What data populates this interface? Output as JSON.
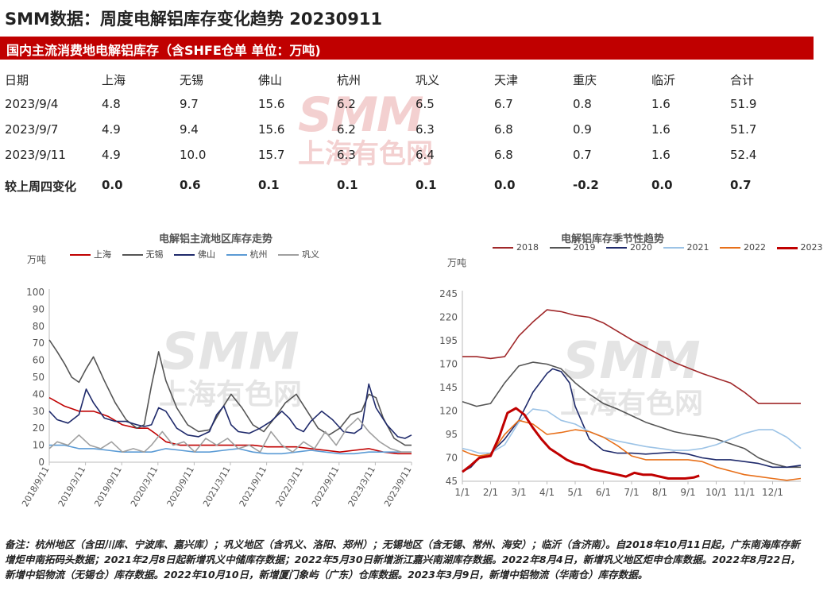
{
  "header": {
    "title": "SMM数据：周度电解铝库存变化趋势 20230911"
  },
  "banner": {
    "text": "国内主流消费地电解铝库存（含SHFE仓单 单位：万吨)"
  },
  "table": {
    "columns": [
      "日期",
      "上海",
      "无锡",
      "佛山",
      "杭州",
      "巩义",
      "天津",
      "重庆",
      "临沂",
      "合计"
    ],
    "rows": [
      [
        "2023/9/4",
        "4.8",
        "9.7",
        "15.6",
        "6.2",
        "6.5",
        "6.7",
        "0.8",
        "1.6",
        "51.9"
      ],
      [
        "2023/9/7",
        "4.9",
        "9.4",
        "15.6",
        "6.2",
        "6.3",
        "6.8",
        "0.9",
        "1.6",
        "51.7"
      ],
      [
        "2023/9/11",
        "4.9",
        "10.0",
        "15.7",
        "6.3",
        "6.4",
        "6.8",
        "0.7",
        "1.6",
        "52.4"
      ]
    ],
    "change_row": [
      "较上周四变化",
      "0.0",
      "0.6",
      "0.1",
      "0.1",
      "0.1",
      "0.0",
      "-0.2",
      "0.0",
      "0.7"
    ]
  },
  "watermark": {
    "brand": "SMM",
    "cn": "上海有色网",
    "color": "#c00000"
  },
  "chart_data": [
    {
      "type": "line",
      "title": "电解铝主流地区库存走势",
      "ylabel": "万吨",
      "ylim": [
        0,
        100
      ],
      "yticks": [
        0,
        10,
        20,
        30,
        40,
        50,
        60,
        70,
        80,
        90,
        100
      ],
      "x_range": [
        2018.69,
        2023.69
      ],
      "xtick_labels": [
        "2018/9/11",
        "2019/3/11",
        "2019/9/11",
        "2020/3/11",
        "2020/9/11",
        "2021/3/11",
        "2021/9/11",
        "2022/3/11",
        "2022/9/11",
        "2023/3/11",
        "2023/9/11"
      ],
      "xtick_positions": [
        2018.69,
        2019.19,
        2019.69,
        2020.19,
        2020.69,
        2021.19,
        2021.69,
        2022.19,
        2022.69,
        2023.19,
        2023.69
      ],
      "series": [
        {
          "name": "上海",
          "color": "#c00000",
          "x": [
            2018.69,
            2018.9,
            2019.1,
            2019.3,
            2019.5,
            2019.7,
            2019.9,
            2020.05,
            2020.15,
            2020.3,
            2020.5,
            2020.7,
            2020.9,
            2021.1,
            2021.3,
            2021.5,
            2021.7,
            2021.9,
            2022.1,
            2022.3,
            2022.5,
            2022.7,
            2022.9,
            2023.1,
            2023.3,
            2023.5,
            2023.69
          ],
          "y": [
            38,
            33,
            30,
            30,
            27,
            22,
            20,
            20,
            17,
            12,
            10,
            10,
            10,
            10,
            10,
            10,
            9,
            9,
            9,
            8,
            7,
            6,
            7,
            8,
            6,
            5,
            5
          ]
        },
        {
          "name": "无锡",
          "color": "#555555",
          "x": [
            2018.69,
            2018.8,
            2018.9,
            2019.0,
            2019.1,
            2019.2,
            2019.3,
            2019.45,
            2019.6,
            2019.75,
            2019.9,
            2020.0,
            2020.1,
            2020.2,
            2020.3,
            2020.45,
            2020.6,
            2020.75,
            2020.9,
            2021.05,
            2021.2,
            2021.35,
            2021.5,
            2021.65,
            2021.8,
            2021.95,
            2022.1,
            2022.25,
            2022.4,
            2022.55,
            2022.7,
            2022.85,
            2023.0,
            2023.1,
            2023.2,
            2023.3,
            2023.45,
            2023.6,
            2023.69
          ],
          "y": [
            72,
            65,
            58,
            50,
            47,
            55,
            62,
            48,
            35,
            25,
            20,
            22,
            45,
            65,
            48,
            32,
            22,
            18,
            19,
            30,
            40,
            32,
            22,
            18,
            26,
            35,
            40,
            30,
            20,
            16,
            20,
            28,
            30,
            40,
            38,
            26,
            14,
            10,
            10
          ]
        },
        {
          "name": "佛山",
          "color": "#1f2a6b",
          "x": [
            2018.69,
            2018.8,
            2018.95,
            2019.1,
            2019.2,
            2019.3,
            2019.45,
            2019.6,
            2019.75,
            2019.9,
            2020.0,
            2020.1,
            2020.2,
            2020.3,
            2020.45,
            2020.6,
            2020.75,
            2020.9,
            2021.0,
            2021.1,
            2021.2,
            2021.3,
            2021.45,
            2021.6,
            2021.75,
            2021.9,
            2022.0,
            2022.1,
            2022.2,
            2022.3,
            2022.45,
            2022.6,
            2022.75,
            2022.9,
            2023.0,
            2023.1,
            2023.2,
            2023.35,
            2023.5,
            2023.6,
            2023.69
          ],
          "y": [
            30,
            25,
            23,
            28,
            43,
            35,
            26,
            24,
            24,
            22,
            21,
            22,
            32,
            30,
            20,
            16,
            15,
            18,
            28,
            33,
            22,
            18,
            17,
            20,
            24,
            30,
            26,
            20,
            18,
            24,
            30,
            25,
            18,
            17,
            20,
            46,
            32,
            22,
            15,
            14,
            16
          ]
        },
        {
          "name": "杭州",
          "color": "#5b9bd5",
          "x": [
            2018.69,
            2018.9,
            2019.1,
            2019.3,
            2019.5,
            2019.7,
            2019.9,
            2020.1,
            2020.3,
            2020.5,
            2020.7,
            2020.9,
            2021.1,
            2021.3,
            2021.5,
            2021.7,
            2021.9,
            2022.1,
            2022.3,
            2022.5,
            2022.7,
            2022.9,
            2023.1,
            2023.3,
            2023.5,
            2023.69
          ],
          "y": [
            10,
            10,
            8,
            8,
            7,
            6,
            6,
            6,
            8,
            7,
            6,
            6,
            7,
            8,
            6,
            5,
            5,
            6,
            7,
            6,
            5,
            5,
            6,
            6,
            6,
            6
          ]
        },
        {
          "name": "巩义",
          "color": "#a0a0a0",
          "x": [
            2018.69,
            2018.8,
            2018.95,
            2019.1,
            2019.25,
            2019.4,
            2019.55,
            2019.7,
            2019.85,
            2020.0,
            2020.1,
            2020.25,
            2020.4,
            2020.55,
            2020.7,
            2020.85,
            2021.0,
            2021.15,
            2021.3,
            2021.45,
            2021.6,
            2021.75,
            2021.9,
            2022.05,
            2022.2,
            2022.35,
            2022.5,
            2022.65,
            2022.8,
            2022.95,
            2023.1,
            2023.25,
            2023.4,
            2023.55,
            2023.69
          ],
          "y": [
            8,
            12,
            10,
            16,
            10,
            8,
            12,
            6,
            8,
            6,
            10,
            18,
            10,
            12,
            6,
            14,
            10,
            14,
            8,
            10,
            6,
            18,
            10,
            6,
            12,
            8,
            18,
            10,
            20,
            26,
            18,
            12,
            8,
            6,
            6
          ]
        }
      ]
    },
    {
      "type": "line",
      "title": "电解铝库存季节性趋势",
      "ylabel": "万吨",
      "ylim": [
        45,
        245
      ],
      "yticks": [
        45,
        70,
        95,
        120,
        145,
        170,
        195,
        220,
        245
      ],
      "x_range": [
        1,
        13
      ],
      "xtick_labels": [
        "1/1",
        "2/1",
        "3/1",
        "4/1",
        "5/1",
        "6/1",
        "7/1",
        "8/1",
        "9/1",
        "10/1",
        "11/1",
        "12/1"
      ],
      "xtick_positions": [
        1,
        2,
        3,
        4,
        5,
        6,
        7,
        8,
        9,
        10,
        11,
        12
      ],
      "series": [
        {
          "name": "2018",
          "color": "#a0282a",
          "x": [
            1,
            1.5,
            2,
            2.5,
            3,
            3.5,
            4,
            4.5,
            5,
            5.5,
            6,
            6.5,
            7,
            7.5,
            8,
            8.5,
            9,
            9.5,
            10,
            10.5,
            11,
            11.5,
            12,
            12.5,
            13
          ],
          "y": [
            178,
            178,
            176,
            178,
            200,
            215,
            228,
            226,
            222,
            220,
            214,
            205,
            196,
            188,
            180,
            172,
            166,
            160,
            155,
            150,
            140,
            128,
            128,
            128,
            128
          ]
        },
        {
          "name": "2019",
          "color": "#555555",
          "x": [
            1,
            1.5,
            2,
            2.5,
            3,
            3.5,
            4,
            4.5,
            5,
            5.5,
            6,
            6.5,
            7,
            7.5,
            8,
            8.5,
            9,
            9.5,
            10,
            10.5,
            11,
            11.5,
            12,
            12.5,
            13
          ],
          "y": [
            130,
            125,
            128,
            150,
            168,
            172,
            170,
            165,
            150,
            138,
            128,
            122,
            115,
            108,
            103,
            98,
            95,
            93,
            90,
            85,
            80,
            70,
            64,
            60,
            60
          ]
        },
        {
          "name": "2020",
          "color": "#1f2a6b",
          "x": [
            1,
            1.3,
            1.6,
            2,
            2.5,
            3,
            3.5,
            4,
            4.2,
            4.5,
            4.8,
            5,
            5.5,
            6,
            6.5,
            7,
            7.5,
            8,
            8.5,
            9,
            9.5,
            10,
            10.5,
            11,
            11.5,
            12,
            12.5,
            13
          ],
          "y": [
            55,
            60,
            70,
            75,
            90,
            110,
            140,
            160,
            165,
            162,
            150,
            125,
            90,
            78,
            75,
            75,
            74,
            75,
            76,
            74,
            70,
            68,
            68,
            66,
            64,
            60,
            60,
            62
          ]
        },
        {
          "name": "2021",
          "color": "#9cc3e6",
          "x": [
            1,
            1.3,
            1.6,
            2,
            2.5,
            3,
            3.5,
            4,
            4.5,
            5,
            5.5,
            6,
            6.5,
            7,
            7.5,
            8,
            8.5,
            9,
            9.5,
            10,
            10.5,
            11,
            11.5,
            12,
            12.5,
            13
          ],
          "y": [
            80,
            78,
            75,
            75,
            84,
            108,
            122,
            120,
            110,
            106,
            98,
            92,
            88,
            85,
            82,
            80,
            78,
            78,
            80,
            84,
            90,
            96,
            100,
            100,
            92,
            80
          ]
        },
        {
          "name": "2022",
          "color": "#e8701a",
          "x": [
            1,
            1.3,
            1.6,
            2,
            2.5,
            3,
            3.5,
            4,
            4.5,
            5,
            5.5,
            6,
            6.5,
            7,
            7.5,
            8,
            8.5,
            9,
            9.5,
            10,
            10.5,
            11,
            11.5,
            12,
            12.5,
            13
          ],
          "y": [
            78,
            74,
            72,
            74,
            95,
            110,
            106,
            95,
            97,
            100,
            98,
            92,
            83,
            72,
            68,
            68,
            68,
            68,
            66,
            60,
            56,
            52,
            50,
            48,
            46,
            48
          ]
        },
        {
          "name": "2023",
          "color": "#c00000",
          "x": [
            1,
            1.3,
            1.6,
            2,
            2.3,
            2.6,
            2.9,
            3.2,
            3.5,
            3.8,
            4.1,
            4.4,
            4.7,
            5,
            5.3,
            5.6,
            5.9,
            6.2,
            6.5,
            6.8,
            7.1,
            7.4,
            7.7,
            8,
            8.3,
            8.6,
            8.9,
            9.2,
            9.4
          ],
          "y": [
            55,
            62,
            70,
            72,
            92,
            118,
            123,
            116,
            102,
            90,
            80,
            74,
            68,
            64,
            62,
            58,
            56,
            54,
            52,
            50,
            54,
            52,
            52,
            50,
            48,
            48,
            48,
            49,
            51
          ]
        }
      ]
    }
  ],
  "footnote": "备注：杭州地区（含田川库、宁波库、嘉兴库）；巩义地区（含巩义、洛阳、郑州）；无锡地区（含无锡、常州、海安）；临沂（含济南）。自2018年10月11日起，广东南海库存新增炬申南拓码头数据；2021年2月8日起新增巩义中储库存数据；2022年5月30日新增浙江嘉兴南湖库存数据。2022年8月4日，新增巩义地区炬申仓库数据。2022年8月22日，新增中铝物流（无锡仓）库存数据。2022年10月10日，新增厦门象屿（广东）仓库数据。2023年3月9日，新增中铝物流（华南仓）库存数据。"
}
